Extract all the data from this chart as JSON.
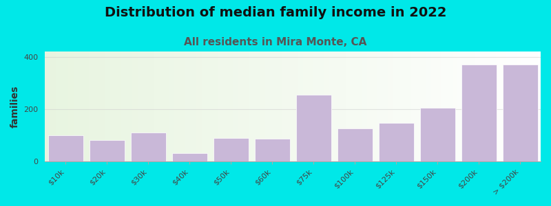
{
  "title": "Distribution of median family income in 2022",
  "subtitle": "All residents in Mira Monte, CA",
  "ylabel": "families",
  "categories": [
    "$10k",
    "$20k",
    "$30k",
    "$40k",
    "$50k",
    "$60k",
    "$75k",
    "$100k",
    "$125k",
    "$150k",
    "$200k",
    "> $200k"
  ],
  "values": [
    100,
    82,
    112,
    32,
    90,
    88,
    255,
    128,
    148,
    205,
    370,
    370
  ],
  "bar_color": "#c9b8d8",
  "bar_edgecolor": "#c9b8d8",
  "background_color": "#00e8e8",
  "plot_bg_left": "#e8f5e0",
  "plot_bg_right": "#f8fef8",
  "title_fontsize": 14,
  "subtitle_fontsize": 11,
  "subtitle_color": "#555555",
  "ylabel_fontsize": 10,
  "ylim": [
    0,
    420
  ],
  "yticks": [
    0,
    200,
    400
  ],
  "grid_color": "#cccccc",
  "grid_alpha": 0.5
}
